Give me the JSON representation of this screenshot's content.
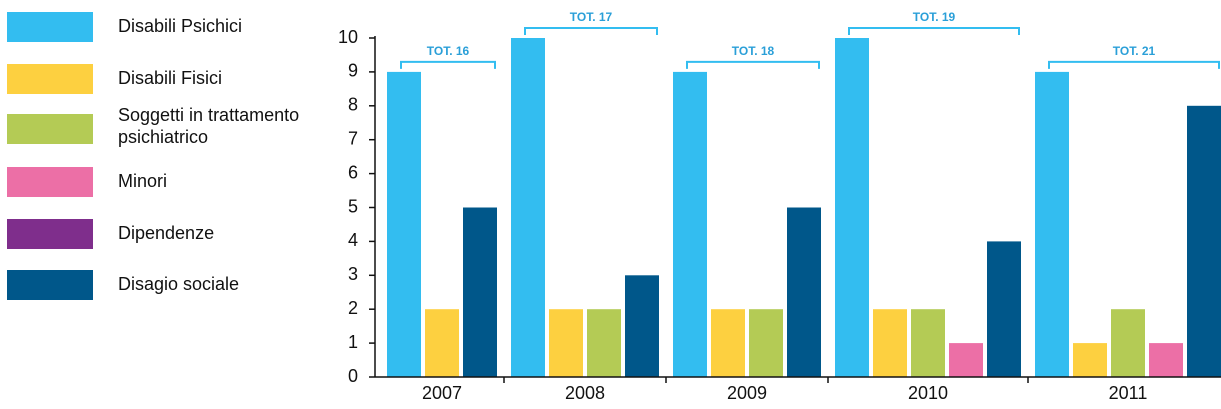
{
  "chart_data": {
    "type": "bar",
    "categories": [
      "2007",
      "2008",
      "2009",
      "2010",
      "2011"
    ],
    "series": [
      {
        "name": "Disabili Psichici",
        "color": "#33bdf0",
        "values": [
          9,
          10,
          9,
          10,
          9
        ]
      },
      {
        "name": "Disabili Fisici",
        "color": "#fdd040",
        "values": [
          2,
          2,
          2,
          2,
          1
        ]
      },
      {
        "name": "Soggetti in trattamento psichiatrico",
        "color": "#b4cb55",
        "values": [
          null,
          2,
          2,
          2,
          2
        ]
      },
      {
        "name": "Minori",
        "color": "#ec6fa6",
        "values": [
          null,
          null,
          null,
          1,
          1
        ]
      },
      {
        "name": "Dipendenze",
        "color": "#7f2e8c",
        "values": [
          null,
          null,
          null,
          null,
          null
        ]
      },
      {
        "name": "Disagio sociale",
        "color": "#00578a",
        "values": [
          5,
          3,
          5,
          4,
          8
        ]
      }
    ],
    "totals": [
      "TOT. 16",
      "TOT. 17",
      "TOT. 18",
      "TOT. 19",
      "TOT. 21"
    ],
    "ylim": [
      0,
      10
    ],
    "yticks": [
      0,
      1,
      2,
      3,
      4,
      5,
      6,
      7,
      8,
      9,
      10
    ],
    "legend": "left"
  }
}
